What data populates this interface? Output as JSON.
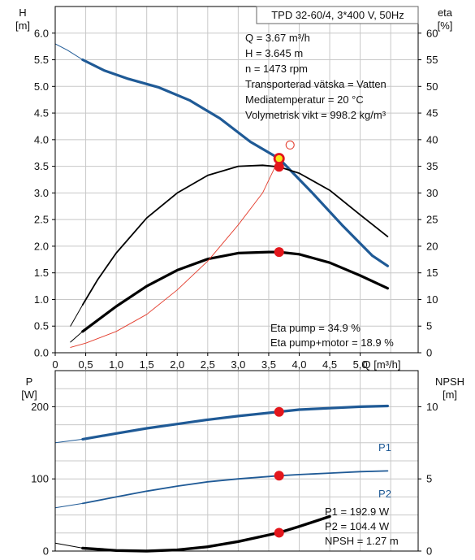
{
  "colors": {
    "blue": "#1f5a96",
    "red": "#e3161c",
    "thin_red": "#e33b2b",
    "yellow": "#f5e81a",
    "grid": "#c8c8c8"
  },
  "chart_data": [
    {
      "type": "line",
      "title": "TPD 32-60/4, 3*400 V, 50Hz",
      "info_lines": [
        "Q = 3.67 m³/h",
        "H = 3.645 m",
        "n = 1473 rpm",
        "Transporterad vätska = Vatten",
        "Mediatemperatur = 20 °C",
        "Volymetrisk vikt = 998.2 kg/m³"
      ],
      "eta_lines": [
        "Eta pump = 34.9 %",
        "Eta pump+motor = 18.9 %"
      ],
      "y_left_label": [
        "H",
        "[m]"
      ],
      "y_right_label": [
        "eta",
        "[%]"
      ],
      "x_label": "Q [m³/h]",
      "x_ticks": [
        "0",
        "0,5",
        "1,0",
        "1,5",
        "2,0",
        "2,5",
        "3,0",
        "3,5",
        "4,0",
        "4,5",
        "5,0"
      ],
      "y_left_ticks": [
        "0.0",
        "0.5",
        "1.0",
        "1.5",
        "2.0",
        "2.5",
        "3.0",
        "3.5",
        "4.0",
        "4.5",
        "5.0",
        "5.5",
        "6.0"
      ],
      "y_right_ticks": [
        "0",
        "5",
        "10",
        "15",
        "20",
        "25",
        "30",
        "35",
        "40",
        "45",
        "50",
        "55",
        "60"
      ],
      "xlim": [
        0,
        5.95
      ],
      "ylim": [
        0,
        6.5
      ],
      "series": [
        {
          "key": "head_thin",
          "values": [
            [
              0,
              5.8
            ],
            [
              0.2,
              5.68
            ],
            [
              0.45,
              5.5
            ]
          ]
        },
        {
          "key": "head",
          "values": [
            [
              0.45,
              5.5
            ],
            [
              0.8,
              5.3
            ],
            [
              1.2,
              5.14
            ],
            [
              1.7,
              4.98
            ],
            [
              2.2,
              4.74
            ],
            [
              2.7,
              4.4
            ],
            [
              3.2,
              3.96
            ],
            [
              3.67,
              3.645
            ],
            [
              4.2,
              3.02
            ],
            [
              4.7,
              2.4
            ],
            [
              5.2,
              1.82
            ],
            [
              5.45,
              1.63
            ]
          ]
        },
        {
          "key": "eta_pump_thin",
          "values": [
            [
              0.25,
              5.0
            ],
            [
              0.45,
              9.0
            ]
          ]
        },
        {
          "key": "eta_pump",
          "values": [
            [
              0.45,
              9.0
            ],
            [
              0.7,
              13.8
            ],
            [
              1.0,
              18.7
            ],
            [
              1.5,
              25.3
            ],
            [
              2.0,
              30.0
            ],
            [
              2.5,
              33.3
            ],
            [
              3.0,
              35.0
            ],
            [
              3.4,
              35.2
            ],
            [
              3.67,
              34.9
            ],
            [
              4.0,
              33.7
            ],
            [
              4.5,
              30.5
            ],
            [
              5.0,
              25.9
            ],
            [
              5.45,
              21.8
            ]
          ]
        },
        {
          "key": "eta_total_thin",
          "values": [
            [
              0.25,
              2.0
            ],
            [
              0.45,
              4.0
            ]
          ]
        },
        {
          "key": "eta_total",
          "values": [
            [
              0.45,
              4.0
            ],
            [
              1.0,
              8.7
            ],
            [
              1.5,
              12.5
            ],
            [
              2.0,
              15.5
            ],
            [
              2.5,
              17.6
            ],
            [
              3.0,
              18.7
            ],
            [
              3.5,
              18.9
            ],
            [
              3.67,
              18.9
            ],
            [
              4.0,
              18.5
            ],
            [
              4.5,
              16.9
            ],
            [
              5.0,
              14.5
            ],
            [
              5.45,
              12.1
            ]
          ]
        },
        {
          "key": "system",
          "values": [
            [
              0.25,
              0.1
            ],
            [
              0.5,
              0.18
            ],
            [
              1.0,
              0.4
            ],
            [
              1.5,
              0.72
            ],
            [
              2.0,
              1.18
            ],
            [
              2.5,
              1.72
            ],
            [
              3.0,
              2.4
            ],
            [
              3.4,
              3.0
            ],
            [
              3.67,
              3.645
            ]
          ]
        }
      ],
      "points": [
        {
          "key": "duty",
          "q": 3.67,
          "h": 3.645
        },
        {
          "key": "eta_pump_pt",
          "q": 3.67,
          "h": 3.49
        },
        {
          "key": "eta_total_pt",
          "q": 3.67,
          "h": 1.89
        },
        {
          "key": "open",
          "q": 3.85,
          "h": 3.9
        }
      ]
    },
    {
      "type": "line",
      "y_left_label": [
        "P",
        "[W]"
      ],
      "y_right_label": [
        "NPSH",
        "[m]"
      ],
      "y_left_ticks": [
        "0",
        "100",
        "200"
      ],
      "y_right_ticks": [
        "0",
        "5",
        "10"
      ],
      "xlim": [
        0,
        5.95
      ],
      "ylim": [
        0,
        250
      ],
      "info_lines": [
        "P1 = 192.9 W",
        "P2 = 104.4 W",
        "NPSH = 1.27 m"
      ],
      "series": [
        {
          "name": "P1",
          "key": "p1",
          "values": [
            [
              0.45,
              155
            ],
            [
              1.0,
              163
            ],
            [
              1.5,
              170
            ],
            [
              2.0,
              176
            ],
            [
              2.5,
              182
            ],
            [
              3.0,
              187
            ],
            [
              3.67,
              193
            ],
            [
              4.0,
              196
            ],
            [
              4.5,
              198
            ],
            [
              5.0,
              200
            ],
            [
              5.45,
              201
            ]
          ]
        },
        {
          "key": "p1_thin",
          "values": [
            [
              0,
              150
            ],
            [
              0.45,
              155
            ]
          ]
        },
        {
          "name": "P2",
          "key": "p2",
          "values": [
            [
              0.45,
              66
            ],
            [
              1.0,
              75
            ],
            [
              1.5,
              83
            ],
            [
              2.0,
              90
            ],
            [
              2.5,
              96
            ],
            [
              3.0,
              100
            ],
            [
              3.67,
              104.4
            ],
            [
              4.0,
              106
            ],
            [
              4.5,
              108
            ],
            [
              5.0,
              110
            ],
            [
              5.45,
              111
            ]
          ]
        },
        {
          "key": "p2_thin",
          "values": [
            [
              0,
              60
            ],
            [
              0.45,
              66
            ]
          ]
        },
        {
          "key": "npsh",
          "values": [
            [
              0.45,
              0.2
            ],
            [
              1.0,
              0.04
            ],
            [
              1.5,
              0.0
            ],
            [
              2.0,
              0.08
            ],
            [
              2.5,
              0.3
            ],
            [
              3.0,
              0.66
            ],
            [
              3.67,
              1.27
            ],
            [
              4.0,
              1.7
            ],
            [
              4.5,
              2.4
            ]
          ]
        },
        {
          "key": "npsh_thin",
          "values": [
            [
              0,
              0.55
            ],
            [
              0.45,
              0.2
            ]
          ]
        }
      ],
      "points": [
        {
          "key": "p1_pt",
          "q": 3.67,
          "v": 192.9
        },
        {
          "key": "p2_pt",
          "q": 3.67,
          "v": 104.4
        },
        {
          "key": "npsh_pt",
          "q": 3.67,
          "npsh": 1.27
        }
      ]
    }
  ]
}
